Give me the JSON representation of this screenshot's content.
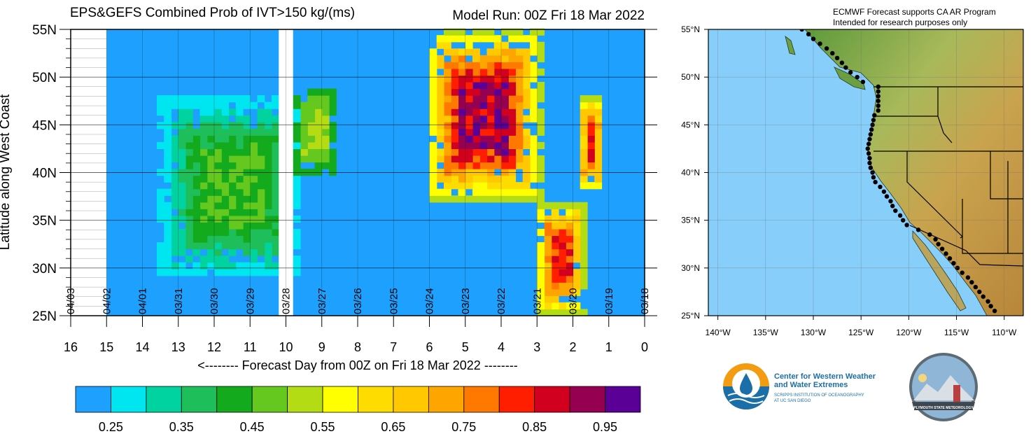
{
  "chart_data": [
    {
      "type": "heatmap",
      "title": "EPS&GEFS Combined Prob of IVT>150 kg/(ms)",
      "subtitle": "Model Run: 00Z Fri 18 Mar 2022",
      "xlabel": "<-------- Forecast Day from 00Z on Fri 18 Mar 2022 --------",
      "ylabel": "Latitude along West Coast",
      "x_axis": {
        "min": 0,
        "max": 16,
        "reversed": true,
        "ticks": [
          16,
          15,
          14,
          13,
          12,
          11,
          10,
          9,
          8,
          7,
          6,
          5,
          4,
          3,
          2,
          1,
          0
        ]
      },
      "y_axis": {
        "min": 25,
        "max": 55,
        "ticks": [
          25,
          30,
          35,
          40,
          45,
          50,
          55
        ],
        "tick_labels": [
          "25N",
          "30N",
          "35N",
          "40N",
          "45N",
          "50N",
          "55N"
        ]
      },
      "date_labels": [
        {
          "day": 16,
          "label": "04/03"
        },
        {
          "day": 15,
          "label": "04/02"
        },
        {
          "day": 14,
          "label": "04/01"
        },
        {
          "day": 13,
          "label": "03/31"
        },
        {
          "day": 12,
          "label": "03/30"
        },
        {
          "day": 11,
          "label": "03/29"
        },
        {
          "day": 10,
          "label": "03/28"
        },
        {
          "day": 9,
          "label": "03/27"
        },
        {
          "day": 8,
          "label": "03/26"
        },
        {
          "day": 7,
          "label": "03/25"
        },
        {
          "day": 6,
          "label": "03/24"
        },
        {
          "day": 5,
          "label": "03/23"
        },
        {
          "day": 4,
          "label": "03/22"
        },
        {
          "day": 3,
          "label": "03/21"
        },
        {
          "day": 2,
          "label": "03/20"
        },
        {
          "day": 1,
          "label": "03/19"
        },
        {
          "day": 0,
          "label": "03/18"
        }
      ],
      "data_extent_days": [
        0,
        15
      ],
      "missing_data_days": [
        9.8,
        10.2
      ],
      "colorbar": {
        "levels": [
          0.2,
          0.25,
          0.3,
          0.35,
          0.4,
          0.45,
          0.5,
          0.55,
          0.6,
          0.65,
          0.7,
          0.75,
          0.8,
          0.85,
          0.9,
          0.95,
          1.0
        ],
        "labeled": [
          "0.25",
          "0.35",
          "0.45",
          "0.55",
          "0.65",
          "0.75",
          "0.85",
          "0.95"
        ],
        "colors": [
          "#1ea0ff",
          "#00e6f0",
          "#00d2a0",
          "#1ebe5a",
          "#14aa1e",
          "#64c81e",
          "#b4dc14",
          "#ffff00",
          "#ffdc00",
          "#ffc800",
          "#ffa500",
          "#ff7800",
          "#ff1e00",
          "#d2001e",
          "#960050",
          "#5a0096"
        ]
      },
      "background_color": "#1ea0ff",
      "features": [
        {
          "region": "western atmospheric river",
          "day_range": [
            9.5,
            13.5
          ],
          "lat_range": [
            29,
            48
          ],
          "prob_range": [
            0.25,
            0.5
          ]
        },
        {
          "region": "day 9 band",
          "day_range": [
            8.6,
            9.8
          ],
          "lat_range": [
            40,
            49
          ],
          "prob_range": [
            0.4,
            0.55
          ]
        },
        {
          "region": "main atmospheric river",
          "day_range": [
            2.9,
            6.1
          ],
          "lat_range": [
            37,
            55
          ],
          "prob_range": [
            0.5,
            1.0
          ]
        },
        {
          "region": "southern atmospheric river",
          "day_range": [
            1.7,
            3.0
          ],
          "lat_range": [
            25,
            37
          ],
          "prob_range": [
            0.5,
            0.9
          ]
        },
        {
          "region": "northern band day 1.5",
          "day_range": [
            1.2,
            1.8
          ],
          "lat_range": [
            38,
            48
          ],
          "prob_range": [
            0.5,
            0.9
          ]
        }
      ]
    }
  ],
  "map": {
    "title_lines": [
      "ECMWF Forecast supports CA AR Program",
      "Intended for research purposes only"
    ],
    "lat_ticks": [
      "25°N",
      "30°N",
      "35°N",
      "40°N",
      "45°N",
      "50°N",
      "55°N"
    ],
    "lon_ticks": [
      "140°W",
      "135°W",
      "130°W",
      "125°W",
      "120°W",
      "115°W",
      "110°W"
    ],
    "lon_range": [
      -141,
      -108
    ],
    "lat_range": [
      25,
      55
    ],
    "ocean_color": "#87cefa"
  },
  "logos": {
    "cw3e_lines": [
      "Center for Western Weather",
      "and Water Extremes",
      "SCRIPPS INSTITUTION OF OCEANOGRAPHY",
      "AT UC SAN DIEGO"
    ],
    "psu_text": "PLYMOUTH STATE METEOROLOGY"
  }
}
